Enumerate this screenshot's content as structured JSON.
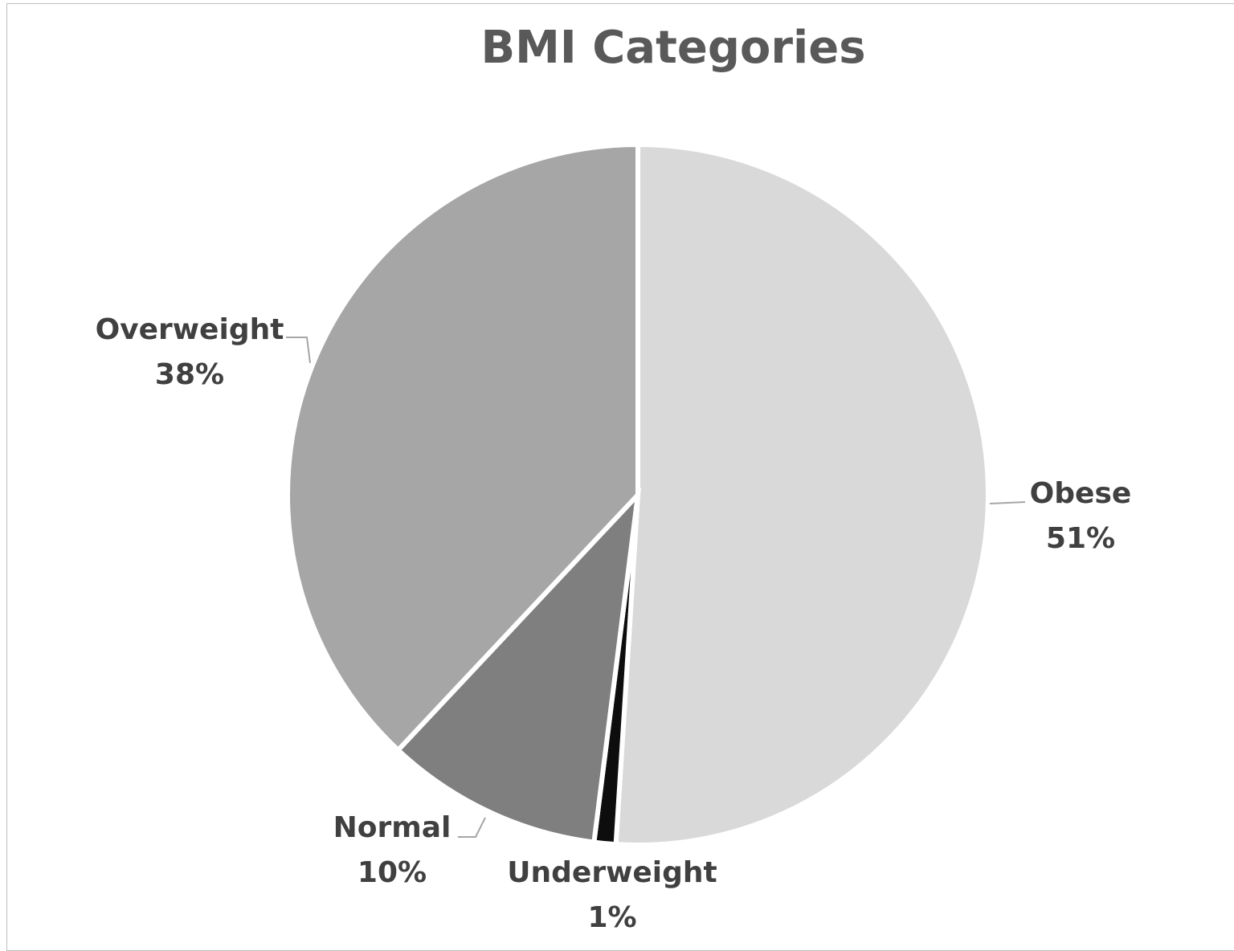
{
  "chart_data": {
    "type": "pie",
    "title": "BMI Categories",
    "slices": [
      {
        "label": "Obese",
        "value": 51,
        "pct_label": "51%",
        "color": "#d9d9d9"
      },
      {
        "label": "Underweight",
        "value": 1,
        "pct_label": "1%",
        "color": "#0d0d0d"
      },
      {
        "label": "Normal",
        "value": 10,
        "pct_label": "10%",
        "color": "#7f7f7f"
      },
      {
        "label": "Overweight",
        "value": 38,
        "pct_label": "38%",
        "color": "#a6a6a6"
      }
    ],
    "start_angle": "12 o'clock",
    "direction": "clockwise",
    "label_style": "outside with leader lines"
  }
}
